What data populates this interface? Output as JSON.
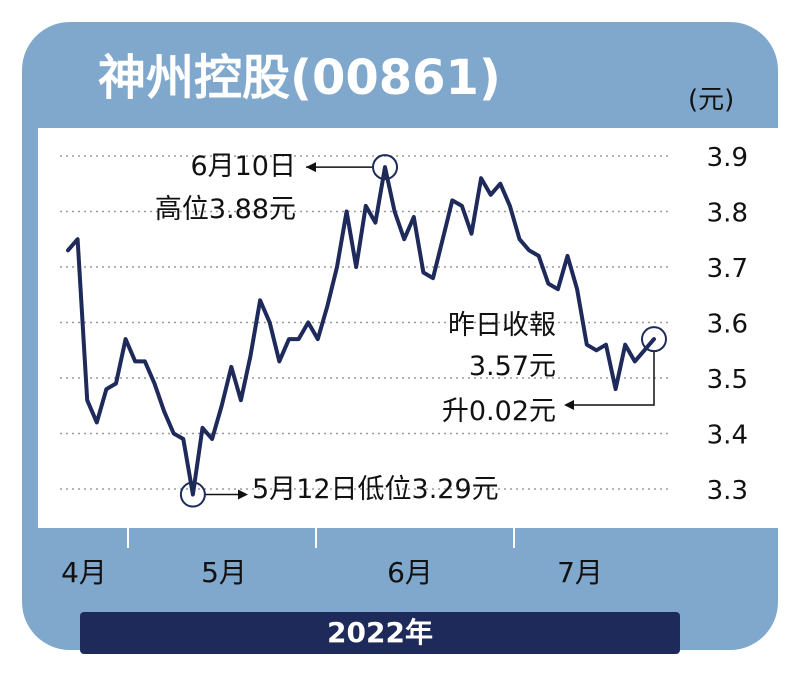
{
  "header": {
    "title": "神州控股(00861)"
  },
  "colors": {
    "frame": "#7fa8cc",
    "line": "#1e2a5a",
    "year_bar": "#1e2a5a",
    "grid": "#9a9a9a"
  },
  "chart_data": {
    "type": "line",
    "title": "神州控股(00861)",
    "ylabel": "(元)",
    "xlabel": "2022年",
    "ylim": [
      3.2,
      3.95
    ],
    "y_ticks": [
      "3.9",
      "3.8",
      "3.7",
      "3.6",
      "3.5",
      "3.4",
      "3.3"
    ],
    "y_tick_values": [
      3.9,
      3.8,
      3.7,
      3.6,
      3.5,
      3.4,
      3.3
    ],
    "x_ticks": [
      "4月",
      "5月",
      "6月",
      "7月"
    ],
    "grid": true,
    "series": [
      {
        "values": [
          3.73,
          3.75,
          3.46,
          3.42,
          3.48,
          3.49,
          3.57,
          3.53,
          3.53,
          3.49,
          3.44,
          3.4,
          3.39,
          3.29,
          3.41,
          3.39,
          3.45,
          3.52,
          3.46,
          3.54,
          3.64,
          3.6,
          3.53,
          3.57,
          3.57,
          3.6,
          3.57,
          3.63,
          3.7,
          3.8,
          3.7,
          3.81,
          3.78,
          3.88,
          3.8,
          3.75,
          3.79,
          3.69,
          3.68,
          3.75,
          3.82,
          3.81,
          3.76,
          3.86,
          3.83,
          3.85,
          3.81,
          3.75,
          3.73,
          3.72,
          3.67,
          3.66,
          3.72,
          3.66,
          3.56,
          3.55,
          3.56,
          3.48,
          3.56,
          3.53,
          3.55,
          3.57
        ]
      }
    ],
    "annotations": {
      "high": {
        "line1": "6月10日",
        "line2": "高位3.88元",
        "value": 3.88
      },
      "low": {
        "text": "5月12日低位3.29元",
        "value": 3.29
      },
      "close": {
        "line1": "昨日收報",
        "line2": "3.57元",
        "line3": "升0.02元",
        "value": 3.57
      }
    }
  }
}
